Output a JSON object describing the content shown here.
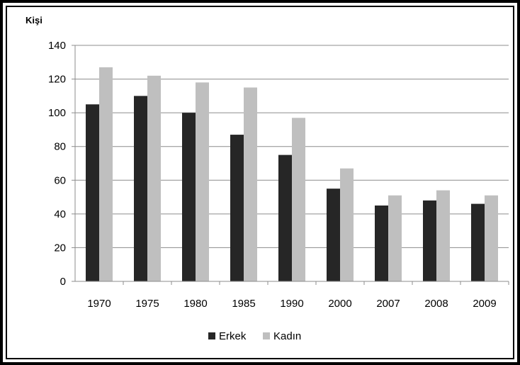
{
  "chart_data": {
    "type": "bar",
    "ylabel": "Kişi",
    "ylim": [
      0,
      140
    ],
    "yticks": [
      0,
      20,
      40,
      60,
      80,
      100,
      120,
      140
    ],
    "categories": [
      "1970",
      "1975",
      "1980",
      "1985",
      "1990",
      "2000",
      "2007",
      "2008",
      "2009"
    ],
    "series": [
      {
        "name": "Erkek",
        "color": "#262626",
        "values": [
          105,
          110,
          100,
          87,
          75,
          55,
          45,
          48,
          46
        ]
      },
      {
        "name": "Kadın",
        "color": "#bfbfbf",
        "values": [
          127,
          122,
          118,
          115,
          97,
          67,
          51,
          54,
          51
        ]
      }
    ],
    "grid": true,
    "legend": "bottom"
  }
}
